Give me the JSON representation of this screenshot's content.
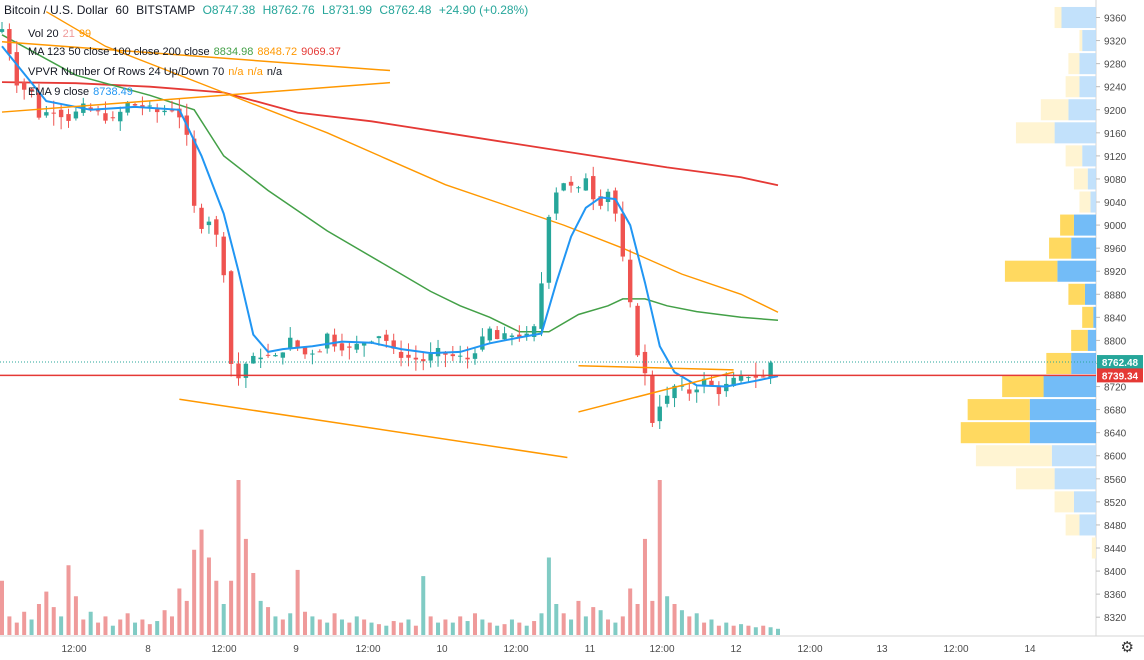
{
  "header": {
    "symbol": "Bitcoin / U.S. Dollar",
    "interval": "60",
    "exchange": "BITSTAMP",
    "open": "O8747.38",
    "high": "H8762.76",
    "low": "L8731.99",
    "close": "C8762.48",
    "change": "+24.90 (+0.28%)"
  },
  "indicators": [
    {
      "name": "Vol 20",
      "values": [
        "21",
        "99"
      ],
      "colors": [
        "#ef9a9a",
        "#ff9800"
      ]
    },
    {
      "name": "MA 123 50 close 100 close 200 close",
      "values": [
        "8834.98",
        "8848.72",
        "9069.37"
      ],
      "colors": [
        "#43a047",
        "#ff9800",
        "#e53935"
      ]
    },
    {
      "name": "VPVR Number Of Rows 24 Up/Down 70",
      "values": [
        "n/a",
        "n/a",
        "n/a"
      ],
      "colors": [
        "#ff9800",
        "#ff9800",
        "#131722"
      ]
    },
    {
      "name": "EMA 9 close",
      "values": [
        "8738.49"
      ],
      "colors": [
        "#2196f3"
      ]
    }
  ],
  "price_labels": {
    "last": "8762.48",
    "line": "8739.34"
  },
  "settings_icon": "gear-icon",
  "colors": {
    "up": "#26a69a",
    "down": "#ef5350",
    "vol_up": "#80cbc4",
    "vol_down": "#ef9a9a",
    "ema": "#2196f3",
    "ma50": "#43a047",
    "ma100": "#ff9800",
    "ma200": "#e53935",
    "trend": "#ff9800",
    "hline": "#e53935"
  },
  "chart_data": {
    "type": "candlestick",
    "y_ticks": [
      9360,
      9320,
      9280,
      9240,
      9200,
      9160,
      9120,
      9080,
      9040,
      9000,
      8960,
      8920,
      8880,
      8840,
      8800,
      8760,
      8720,
      8680,
      8640,
      8600,
      8560,
      8520,
      8480,
      8440,
      8400,
      8360,
      8320
    ],
    "x_ticks": [
      "12:00",
      "8",
      "12:00",
      "9",
      "12:00",
      "10",
      "12:00",
      "11",
      "12:00",
      "12",
      "12:00",
      "13",
      "12:00",
      "14"
    ],
    "ylim": [
      8303,
      9373
    ],
    "price_segments": [
      {
        "from": 0,
        "to": 1,
        "points": [
          [
            0,
            9335
          ],
          [
            1,
            9340
          ],
          [
            2,
            9300
          ],
          [
            3,
            9248
          ],
          [
            4,
            9236
          ],
          [
            5,
            9230
          ],
          [
            6,
            9190
          ],
          [
            8,
            9200
          ],
          [
            10,
            9185
          ],
          [
            12,
            9204
          ],
          [
            14,
            9194
          ],
          [
            16,
            9180
          ],
          [
            18,
            9210
          ],
          [
            20,
            9206
          ],
          [
            22,
            9196
          ],
          [
            24,
            9202
          ],
          [
            25,
            9190
          ],
          [
            26,
            9150
          ],
          [
            27,
            9030
          ],
          [
            28,
            9000
          ],
          [
            29,
            9010
          ],
          [
            30,
            8980
          ],
          [
            31,
            8920
          ],
          [
            32,
            8760
          ],
          [
            33,
            8735
          ],
          [
            34,
            8760
          ],
          [
            36,
            8775
          ],
          [
            38,
            8770
          ],
          [
            40,
            8800
          ],
          [
            42,
            8776
          ],
          [
            44,
            8786
          ],
          [
            45,
            8810
          ],
          [
            46,
            8795
          ],
          [
            48,
            8784
          ],
          [
            50,
            8798
          ],
          [
            52,
            8810
          ],
          [
            53,
            8800
          ],
          [
            54,
            8780
          ],
          [
            56,
            8770
          ],
          [
            58,
            8765
          ],
          [
            60,
            8780
          ],
          [
            62,
            8772
          ],
          [
            64,
            8768
          ],
          [
            66,
            8800
          ],
          [
            67,
            8818
          ],
          [
            68,
            8802
          ],
          [
            70,
            8810
          ],
          [
            72,
            8806
          ],
          [
            73,
            8820
          ],
          [
            74,
            8900
          ],
          [
            75,
            9020
          ],
          [
            76,
            9060
          ],
          [
            77,
            9075
          ],
          [
            78,
            9065
          ],
          [
            79,
            9060
          ],
          [
            80,
            9085
          ],
          [
            81,
            9050
          ],
          [
            82,
            9040
          ],
          [
            83,
            9060
          ],
          [
            84,
            9020
          ],
          [
            85,
            8940
          ],
          [
            86,
            8860
          ],
          [
            87,
            8780
          ],
          [
            88,
            8740
          ],
          [
            89,
            8660
          ],
          [
            90,
            8690
          ],
          [
            91,
            8700
          ],
          [
            92,
            8720
          ],
          [
            94,
            8710
          ],
          [
            96,
            8730
          ],
          [
            98,
            8712
          ],
          [
            100,
            8730
          ],
          [
            102,
            8740
          ],
          [
            104,
            8735
          ],
          [
            105,
            8762
          ]
        ]
      }
    ],
    "ema9": [
      [
        0,
        9310
      ],
      [
        6,
        9215
      ],
      [
        12,
        9200
      ],
      [
        18,
        9205
      ],
      [
        24,
        9200
      ],
      [
        27,
        9120
      ],
      [
        30,
        9020
      ],
      [
        32,
        8920
      ],
      [
        34,
        8810
      ],
      [
        36,
        8780
      ],
      [
        38,
        8785
      ],
      [
        42,
        8790
      ],
      [
        46,
        8798
      ],
      [
        50,
        8796
      ],
      [
        54,
        8785
      ],
      [
        58,
        8778
      ],
      [
        62,
        8780
      ],
      [
        66,
        8795
      ],
      [
        70,
        8805
      ],
      [
        73,
        8812
      ],
      [
        75,
        8900
      ],
      [
        77,
        8980
      ],
      [
        79,
        9030
      ],
      [
        81,
        9048
      ],
      [
        83,
        9045
      ],
      [
        85,
        9000
      ],
      [
        87,
        8900
      ],
      [
        89,
        8790
      ],
      [
        91,
        8745
      ],
      [
        94,
        8722
      ],
      [
        98,
        8720
      ],
      [
        102,
        8730
      ],
      [
        105,
        8738
      ]
    ],
    "ma50": [
      [
        0,
        9330
      ],
      [
        10,
        9260
      ],
      [
        20,
        9225
      ],
      [
        26,
        9200
      ],
      [
        30,
        9120
      ],
      [
        36,
        9060
      ],
      [
        44,
        8990
      ],
      [
        52,
        8930
      ],
      [
        58,
        8885
      ],
      [
        62,
        8860
      ],
      [
        66,
        8840
      ],
      [
        70,
        8815
      ],
      [
        74,
        8815
      ],
      [
        78,
        8845
      ],
      [
        82,
        8860
      ],
      [
        84,
        8872
      ],
      [
        87,
        8872
      ],
      [
        90,
        8860
      ],
      [
        94,
        8850
      ],
      [
        100,
        8840
      ],
      [
        105,
        8835
      ]
    ],
    "ma100": [
      [
        6,
        9370
      ],
      [
        14,
        9310
      ],
      [
        22,
        9270
      ],
      [
        30,
        9230
      ],
      [
        36,
        9200
      ],
      [
        44,
        9160
      ],
      [
        52,
        9115
      ],
      [
        60,
        9070
      ],
      [
        68,
        9035
      ],
      [
        76,
        9000
      ],
      [
        84,
        8960
      ],
      [
        92,
        8915
      ],
      [
        100,
        8880
      ],
      [
        105,
        8849
      ]
    ],
    "ma200": [
      [
        0,
        9248
      ],
      [
        10,
        9246
      ],
      [
        20,
        9240
      ],
      [
        30,
        9230
      ],
      [
        40,
        9195
      ],
      [
        50,
        9180
      ],
      [
        60,
        9160
      ],
      [
        70,
        9140
      ],
      [
        80,
        9120
      ],
      [
        90,
        9100
      ],
      [
        100,
        9083
      ],
      [
        105,
        9069
      ]
    ],
    "volume": [
      [
        0,
        0.35,
        "d"
      ],
      [
        1,
        0.12,
        "d"
      ],
      [
        2,
        0.08,
        "d"
      ],
      [
        3,
        0.15,
        "d"
      ],
      [
        4,
        0.1,
        "u"
      ],
      [
        5,
        0.2,
        "d"
      ],
      [
        6,
        0.28,
        "d"
      ],
      [
        7,
        0.18,
        "d"
      ],
      [
        8,
        0.12,
        "u"
      ],
      [
        9,
        0.45,
        "d"
      ],
      [
        10,
        0.25,
        "d"
      ],
      [
        11,
        0.1,
        "d"
      ],
      [
        12,
        0.15,
        "u"
      ],
      [
        13,
        0.08,
        "d"
      ],
      [
        14,
        0.12,
        "d"
      ],
      [
        15,
        0.06,
        "u"
      ],
      [
        16,
        0.1,
        "d"
      ],
      [
        17,
        0.14,
        "d"
      ],
      [
        18,
        0.08,
        "u"
      ],
      [
        19,
        0.1,
        "d"
      ],
      [
        20,
        0.07,
        "d"
      ],
      [
        21,
        0.09,
        "u"
      ],
      [
        22,
        0.16,
        "d"
      ],
      [
        23,
        0.12,
        "d"
      ],
      [
        24,
        0.3,
        "d"
      ],
      [
        25,
        0.22,
        "d"
      ],
      [
        26,
        0.55,
        "d"
      ],
      [
        27,
        0.68,
        "d"
      ],
      [
        28,
        0.5,
        "d"
      ],
      [
        29,
        0.35,
        "d"
      ],
      [
        30,
        0.2,
        "u"
      ],
      [
        31,
        0.35,
        "d"
      ],
      [
        32,
        1.0,
        "d"
      ],
      [
        33,
        0.62,
        "d"
      ],
      [
        34,
        0.4,
        "d"
      ],
      [
        35,
        0.22,
        "u"
      ],
      [
        36,
        0.18,
        "d"
      ],
      [
        37,
        0.12,
        "u"
      ],
      [
        38,
        0.1,
        "d"
      ],
      [
        39,
        0.14,
        "u"
      ],
      [
        40,
        0.42,
        "d"
      ],
      [
        41,
        0.15,
        "d"
      ],
      [
        42,
        0.12,
        "u"
      ],
      [
        43,
        0.1,
        "d"
      ],
      [
        44,
        0.08,
        "u"
      ],
      [
        45,
        0.14,
        "d"
      ],
      [
        46,
        0.1,
        "u"
      ],
      [
        47,
        0.08,
        "d"
      ],
      [
        48,
        0.12,
        "u"
      ],
      [
        49,
        0.1,
        "d"
      ],
      [
        50,
        0.08,
        "u"
      ],
      [
        51,
        0.07,
        "d"
      ],
      [
        52,
        0.06,
        "u"
      ],
      [
        53,
        0.09,
        "d"
      ],
      [
        54,
        0.08,
        "d"
      ],
      [
        55,
        0.1,
        "u"
      ],
      [
        56,
        0.06,
        "d"
      ],
      [
        57,
        0.38,
        "u"
      ],
      [
        58,
        0.12,
        "d"
      ],
      [
        59,
        0.08,
        "u"
      ],
      [
        60,
        0.1,
        "d"
      ],
      [
        61,
        0.08,
        "u"
      ],
      [
        62,
        0.12,
        "d"
      ],
      [
        63,
        0.09,
        "u"
      ],
      [
        64,
        0.14,
        "d"
      ],
      [
        65,
        0.1,
        "u"
      ],
      [
        66,
        0.08,
        "d"
      ],
      [
        67,
        0.06,
        "u"
      ],
      [
        68,
        0.07,
        "d"
      ],
      [
        69,
        0.1,
        "u"
      ],
      [
        70,
        0.08,
        "d"
      ],
      [
        71,
        0.06,
        "u"
      ],
      [
        72,
        0.09,
        "d"
      ],
      [
        73,
        0.14,
        "u"
      ],
      [
        74,
        0.5,
        "u"
      ],
      [
        75,
        0.2,
        "u"
      ],
      [
        76,
        0.14,
        "d"
      ],
      [
        77,
        0.1,
        "u"
      ],
      [
        78,
        0.22,
        "d"
      ],
      [
        79,
        0.12,
        "u"
      ],
      [
        80,
        0.18,
        "d"
      ],
      [
        81,
        0.16,
        "u"
      ],
      [
        82,
        0.1,
        "d"
      ],
      [
        83,
        0.08,
        "u"
      ],
      [
        84,
        0.12,
        "d"
      ],
      [
        85,
        0.3,
        "d"
      ],
      [
        86,
        0.2,
        "d"
      ],
      [
        87,
        0.62,
        "d"
      ],
      [
        88,
        0.22,
        "d"
      ],
      [
        89,
        1.0,
        "d"
      ],
      [
        90,
        0.25,
        "u"
      ],
      [
        91,
        0.2,
        "d"
      ],
      [
        92,
        0.16,
        "u"
      ],
      [
        93,
        0.12,
        "d"
      ],
      [
        94,
        0.14,
        "u"
      ],
      [
        95,
        0.08,
        "d"
      ],
      [
        96,
        0.1,
        "u"
      ],
      [
        97,
        0.06,
        "d"
      ],
      [
        98,
        0.08,
        "u"
      ],
      [
        99,
        0.06,
        "d"
      ],
      [
        100,
        0.07,
        "u"
      ],
      [
        101,
        0.06,
        "d"
      ],
      [
        102,
        0.05,
        "u"
      ],
      [
        103,
        0.06,
        "d"
      ],
      [
        104,
        0.05,
        "u"
      ],
      [
        105,
        0.04,
        "u"
      ]
    ],
    "vpvr": [
      {
        "price": 9360,
        "down": 0.05,
        "up": 0.25
      },
      {
        "price": 9320,
        "down": 0.02,
        "up": 0.1
      },
      {
        "price": 9280,
        "down": 0.08,
        "up": 0.12
      },
      {
        "price": 9240,
        "down": 0.1,
        "up": 0.12
      },
      {
        "price": 9200,
        "down": 0.2,
        "up": 0.2
      },
      {
        "price": 9160,
        "down": 0.28,
        "up": 0.3
      },
      {
        "price": 9120,
        "down": 0.12,
        "up": 0.1
      },
      {
        "price": 9080,
        "down": 0.1,
        "up": 0.06
      },
      {
        "price": 9040,
        "down": 0.08,
        "up": 0.04
      },
      {
        "price": 9000,
        "down": 0.1,
        "up": 0.16
      },
      {
        "price": 8960,
        "down": 0.16,
        "up": 0.18
      },
      {
        "price": 8920,
        "down": 0.38,
        "up": 0.28
      },
      {
        "price": 8880,
        "down": 0.12,
        "up": 0.08
      },
      {
        "price": 8840,
        "down": 0.08,
        "up": 0.02
      },
      {
        "price": 8800,
        "down": 0.12,
        "up": 0.06
      },
      {
        "price": 8760,
        "down": 0.18,
        "up": 0.18
      },
      {
        "price": 8720,
        "down": 0.3,
        "up": 0.38
      },
      {
        "price": 8680,
        "down": 0.45,
        "up": 0.48
      },
      {
        "price": 8640,
        "down": 0.5,
        "up": 0.48
      },
      {
        "price": 8600,
        "down": 0.55,
        "up": 0.32
      },
      {
        "price": 8560,
        "down": 0.28,
        "up": 0.3
      },
      {
        "price": 8520,
        "down": 0.14,
        "up": 0.16
      },
      {
        "price": 8480,
        "down": 0.1,
        "up": 0.12
      },
      {
        "price": 8440,
        "down": 0.03,
        "up": 0.0
      }
    ],
    "trendlines": [
      {
        "p1": [
          0,
          9318
        ],
        "p2": [
          35,
          9268
        ]
      },
      {
        "p1": [
          0,
          9196
        ],
        "p2": [
          35,
          9247
        ]
      },
      {
        "p1": [
          16,
          8698
        ],
        "p2": [
          51,
          8597
        ]
      },
      {
        "p1": [
          52,
          8676
        ],
        "p2": [
          66,
          8745
        ]
      },
      {
        "p1": [
          52,
          8756
        ],
        "p2": [
          66,
          8749
        ]
      }
    ],
    "hline": 8739.34
  }
}
